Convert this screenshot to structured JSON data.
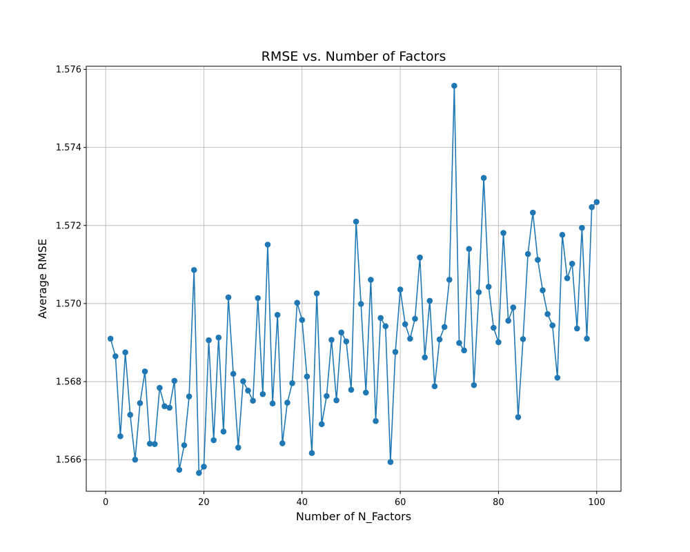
{
  "chart_data": {
    "type": "line",
    "title": "RMSE vs. Number of Factors",
    "xlabel": "Number of N_Factors",
    "ylabel": "Average RMSE",
    "xlim": [
      -3.95,
      104.95
    ],
    "ylim": [
      1.56519,
      1.57608
    ],
    "xticks": [
      0,
      20,
      40,
      60,
      80,
      100
    ],
    "yticks": [
      1.566,
      1.568,
      1.57,
      1.572,
      1.574,
      1.576
    ],
    "ytick_labels": [
      "1.566",
      "1.568",
      "1.570",
      "1.572",
      "1.574",
      "1.576"
    ],
    "grid": true,
    "marker": "circle",
    "color": "#1f77b4",
    "series": [
      {
        "x": [
          1,
          2,
          3,
          4,
          5,
          6,
          7,
          8,
          9,
          10,
          11,
          12,
          13,
          14,
          15,
          16,
          17,
          18,
          19,
          20,
          21,
          22,
          23,
          24,
          25,
          26,
          27,
          28,
          29,
          30,
          31,
          32,
          33,
          34,
          35,
          36,
          37,
          38,
          39,
          40,
          41,
          42,
          43,
          44,
          45,
          46,
          47,
          48,
          49,
          50,
          51,
          52,
          53,
          54,
          55,
          56,
          57,
          58,
          59,
          60,
          61,
          62,
          63,
          64,
          65,
          66,
          67,
          68,
          69,
          70,
          71,
          72,
          73,
          74,
          75,
          76,
          77,
          78,
          79,
          80,
          81,
          82,
          83,
          84,
          85,
          86,
          87,
          88,
          89,
          90,
          91,
          92,
          93,
          94,
          95,
          96,
          97,
          98,
          99,
          100
        ],
        "values": [
          1.5691,
          1.56865,
          1.5666,
          1.56875,
          1.56715,
          1.566,
          1.56745,
          1.56826,
          1.56641,
          1.5664,
          1.56784,
          1.56737,
          1.56733,
          1.56802,
          1.56574,
          1.56637,
          1.56762,
          1.57086,
          1.56566,
          1.56582,
          1.56906,
          1.5665,
          1.56913,
          1.56672,
          1.57016,
          1.5682,
          1.56631,
          1.56801,
          1.56777,
          1.56751,
          1.57014,
          1.56768,
          1.57151,
          1.56744,
          1.56971,
          1.56642,
          1.56746,
          1.56796,
          1.57002,
          1.56958,
          1.56813,
          1.56617,
          1.57026,
          1.56691,
          1.56763,
          1.56907,
          1.56752,
          1.56926,
          1.56903,
          1.56779,
          1.5721,
          1.56999,
          1.56772,
          1.57061,
          1.56699,
          1.56963,
          1.56942,
          1.56594,
          1.56876,
          1.57036,
          1.56947,
          1.5691,
          1.56961,
          1.57118,
          1.56862,
          1.57007,
          1.56788,
          1.56908,
          1.5694,
          1.57061,
          1.57558,
          1.56899,
          1.5688,
          1.5714,
          1.56791,
          1.57029,
          1.57322,
          1.57043,
          1.56938,
          1.56901,
          1.57181,
          1.56956,
          1.5699,
          1.56709,
          1.56909,
          1.57127,
          1.57233,
          1.57112,
          1.57034,
          1.56973,
          1.56944,
          1.5681,
          1.57176,
          1.57065,
          1.57102,
          1.56936,
          1.57194,
          1.5691,
          1.57247,
          1.5726
        ]
      }
    ]
  }
}
